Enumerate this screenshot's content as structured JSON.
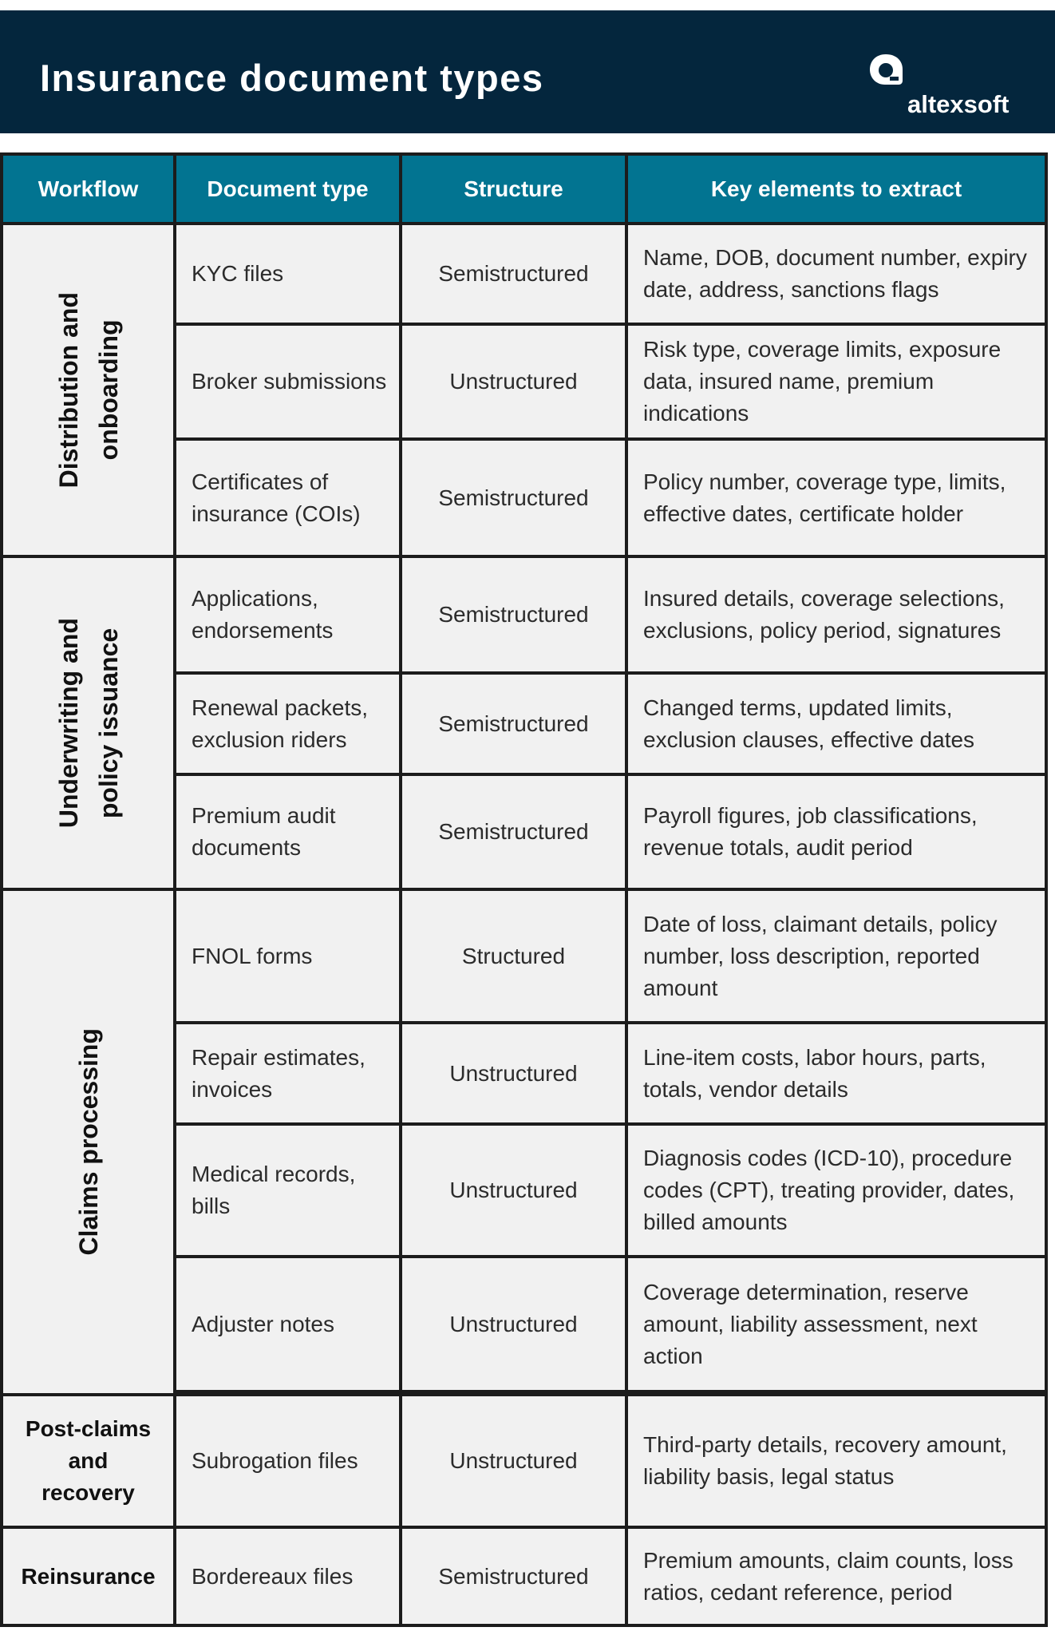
{
  "header": {
    "title": "Insurance document types",
    "logo_text": "altexsoft",
    "logo_icon": "altexsoft-logo-icon",
    "background": "#04263d"
  },
  "table": {
    "header_color": "#027491",
    "columns": [
      "Workflow",
      "Document type",
      "Structure",
      "Key elements to extract"
    ],
    "groups": [
      {
        "workflow": "Distribution and\nonboarding",
        "orientation": "vertical"
      },
      {
        "workflow": "Underwriting and\npolicy issuance",
        "orientation": "vertical"
      },
      {
        "workflow": "Claims processing",
        "orientation": "vertical"
      },
      {
        "workflow": "Post-claims\nand\nrecovery",
        "orientation": "horizontal"
      },
      {
        "workflow": "Reinsurance",
        "orientation": "horizontal"
      }
    ],
    "rows": [
      {
        "doc": "KYC files",
        "structure": "Semistructured",
        "key": "Name, DOB, document number, expiry date, address, sanctions flags"
      },
      {
        "doc": "Broker submissions",
        "structure": "Unstructured",
        "key": "Risk type, coverage limits, exposure data, insured name, premium indications"
      },
      {
        "doc": "Certificates of insurance (COIs)",
        "structure": "Semistructured",
        "key": "Policy number, coverage type, limits, effective dates, certificate holder"
      },
      {
        "doc": "Applications, endorsements",
        "structure": "Semistructured",
        "key": "Insured details, coverage selections, exclusions, policy period, signatures"
      },
      {
        "doc": "Renewal packets, exclusion riders",
        "structure": "Semistructured",
        "key": "Changed terms, updated limits, exclusion clauses, effective dates"
      },
      {
        "doc": "Premium audit documents",
        "structure": "Semistructured",
        "key": "Payroll figures, job classifications, revenue totals, audit period"
      },
      {
        "doc": "FNOL forms",
        "structure": "Structured",
        "key": "Date of loss, claimant details, policy number, loss description, reported amount"
      },
      {
        "doc": "Repair estimates, invoices",
        "structure": "Unstructured",
        "key": "Line-item costs, labor hours, parts, totals, vendor details"
      },
      {
        "doc": "Medical records, bills",
        "structure": "Unstructured",
        "key": "Diagnosis codes (ICD-10), procedure codes (CPT), treating provider, dates, billed amounts"
      },
      {
        "doc": "Adjuster notes",
        "structure": "Unstructured",
        "key": "Coverage determination, reserve amount, liability assessment, next action"
      },
      {
        "doc": "Subrogation files",
        "structure": "Unstructured",
        "key": "Third-party details, recovery amount, liability basis, legal status"
      },
      {
        "doc": "Bordereaux files",
        "structure": "Semistructured",
        "key": "Premium amounts, claim counts, loss ratios, cedant reference, period"
      }
    ]
  }
}
